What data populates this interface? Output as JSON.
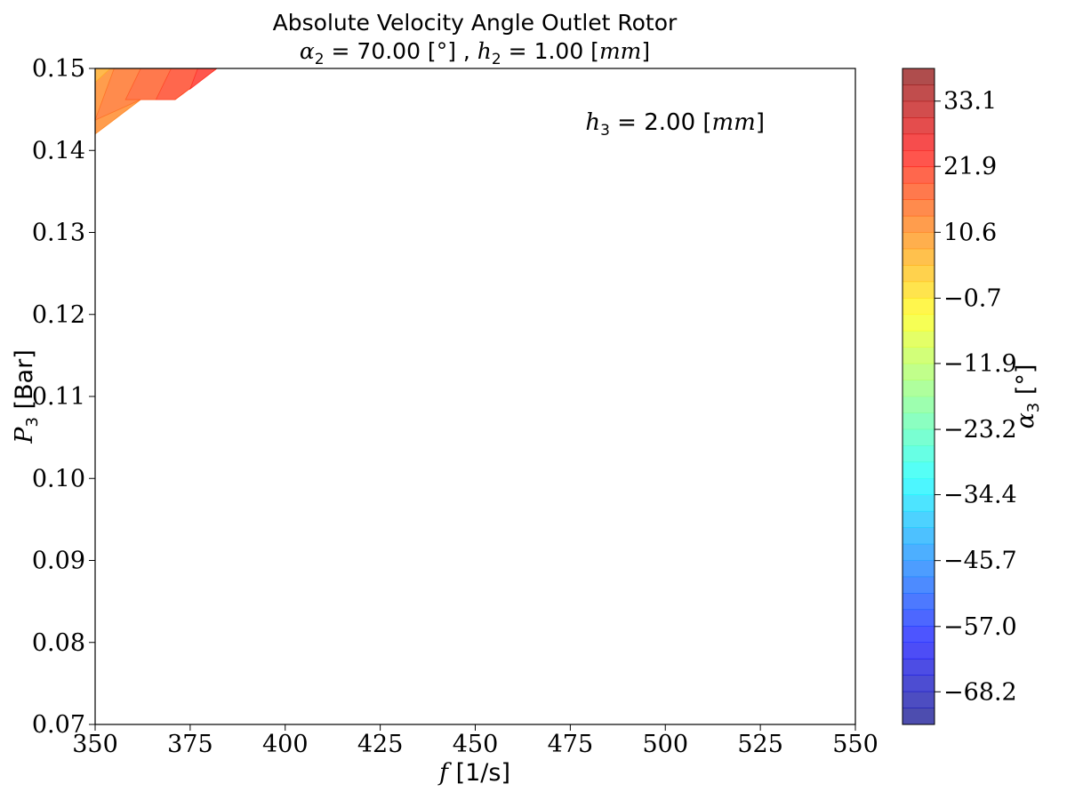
{
  "chart_data": {
    "type": "heatmap",
    "title_line1": "Absolute Velocity Angle Outlet Rotor",
    "title_line2": {
      "alpha_sym": "α",
      "alpha_sub": "2",
      "alpha_text": " = 70.00 [°] , ",
      "h_sym": "h",
      "h_sub": "2",
      "h_text": " = 1.00 [",
      "h_unit": "mm",
      "h_close": "]"
    },
    "xlabel": {
      "sym": "f",
      "text": " [1/s]"
    },
    "ylabel": {
      "sym": "P",
      "sub": "3",
      "text": " [Bar]"
    },
    "xlim": [
      350,
      550
    ],
    "ylim": [
      0.07,
      0.15
    ],
    "xticks": [
      "350",
      "375",
      "400",
      "425",
      "450",
      "475",
      "500",
      "525",
      "550"
    ],
    "xtick_values": [
      350,
      375,
      400,
      425,
      450,
      475,
      500,
      525,
      550
    ],
    "yticks": [
      "0.07",
      "0.08",
      "0.09",
      "0.10",
      "0.11",
      "0.12",
      "0.13",
      "0.14",
      "0.15"
    ],
    "ytick_values": [
      0.07,
      0.08,
      0.09,
      0.1,
      0.11,
      0.12,
      0.13,
      0.14,
      0.15
    ],
    "annotation": {
      "sym": "h",
      "sub": "3",
      "text": " = 2.00 [",
      "unit": "mm",
      "close": "]"
    },
    "colorbar": {
      "label_sym": "α",
      "label_sub": "3",
      "label_text": " [°]",
      "min": -73.8,
      "max": 38.7,
      "levels": 40,
      "ticks": [
        "33.1",
        "21.9",
        "10.6",
        "−0.7",
        "−11.9",
        "−23.2",
        "−34.4",
        "−45.7",
        "−57.0",
        "−68.2"
      ],
      "tick_values": [
        33.1,
        21.9,
        10.6,
        -0.7,
        -11.9,
        -23.2,
        -34.4,
        -45.7,
        -57.0,
        -68.2
      ],
      "colormap": "jet",
      "alpha": 0.7
    },
    "regions": [
      {
        "value": 12.0,
        "points": [
          [
            350,
            0.15
          ],
          [
            382,
            0.15
          ],
          [
            371,
            0.1462
          ],
          [
            362,
            0.1462
          ],
          [
            350,
            0.142
          ]
        ]
      },
      {
        "value": 14.8,
        "points": [
          [
            355,
            0.15
          ],
          [
            382,
            0.15
          ],
          [
            371,
            0.1462
          ],
          [
            362,
            0.1462
          ],
          [
            350,
            0.1437
          ]
        ]
      },
      {
        "value": 17.6,
        "points": [
          [
            362,
            0.15
          ],
          [
            382,
            0.15
          ],
          [
            371,
            0.1462
          ],
          [
            358,
            0.1462
          ]
        ]
      },
      {
        "value": 20.4,
        "points": [
          [
            370,
            0.15
          ],
          [
            382,
            0.15
          ],
          [
            371,
            0.1462
          ],
          [
            366,
            0.1462
          ]
        ]
      },
      {
        "value": 23.2,
        "points": [
          [
            377,
            0.15
          ],
          [
            382,
            0.15
          ],
          [
            375,
            0.1475
          ]
        ]
      },
      {
        "value": 7.5,
        "points": [
          [
            350,
            0.15
          ],
          [
            354,
            0.15
          ],
          [
            350,
            0.1483
          ]
        ]
      }
    ]
  }
}
